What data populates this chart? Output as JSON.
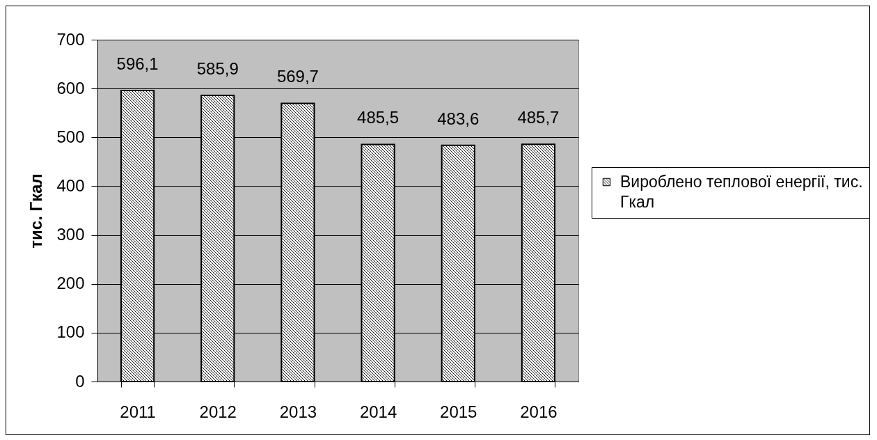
{
  "chart_data": {
    "type": "bar",
    "ylabel": "тис. Гкал",
    "categories": [
      "2011",
      "2012",
      "2013",
      "2014",
      "2015",
      "2016"
    ],
    "series": [
      {
        "name": "Вироблено теплової енергії, тис. Гкал",
        "color": "#000000",
        "values": [
          596.1,
          585.9,
          569.7,
          485.5,
          483.6,
          485.7
        ],
        "value_labels": [
          "596,1",
          "585,9",
          "569,7",
          "485,5",
          "483,6",
          "485,7"
        ]
      }
    ],
    "ylim": [
      0,
      700
    ],
    "yticks": [
      0,
      100,
      200,
      300,
      400,
      500,
      600,
      700
    ],
    "grid": "y",
    "legend": "right"
  }
}
